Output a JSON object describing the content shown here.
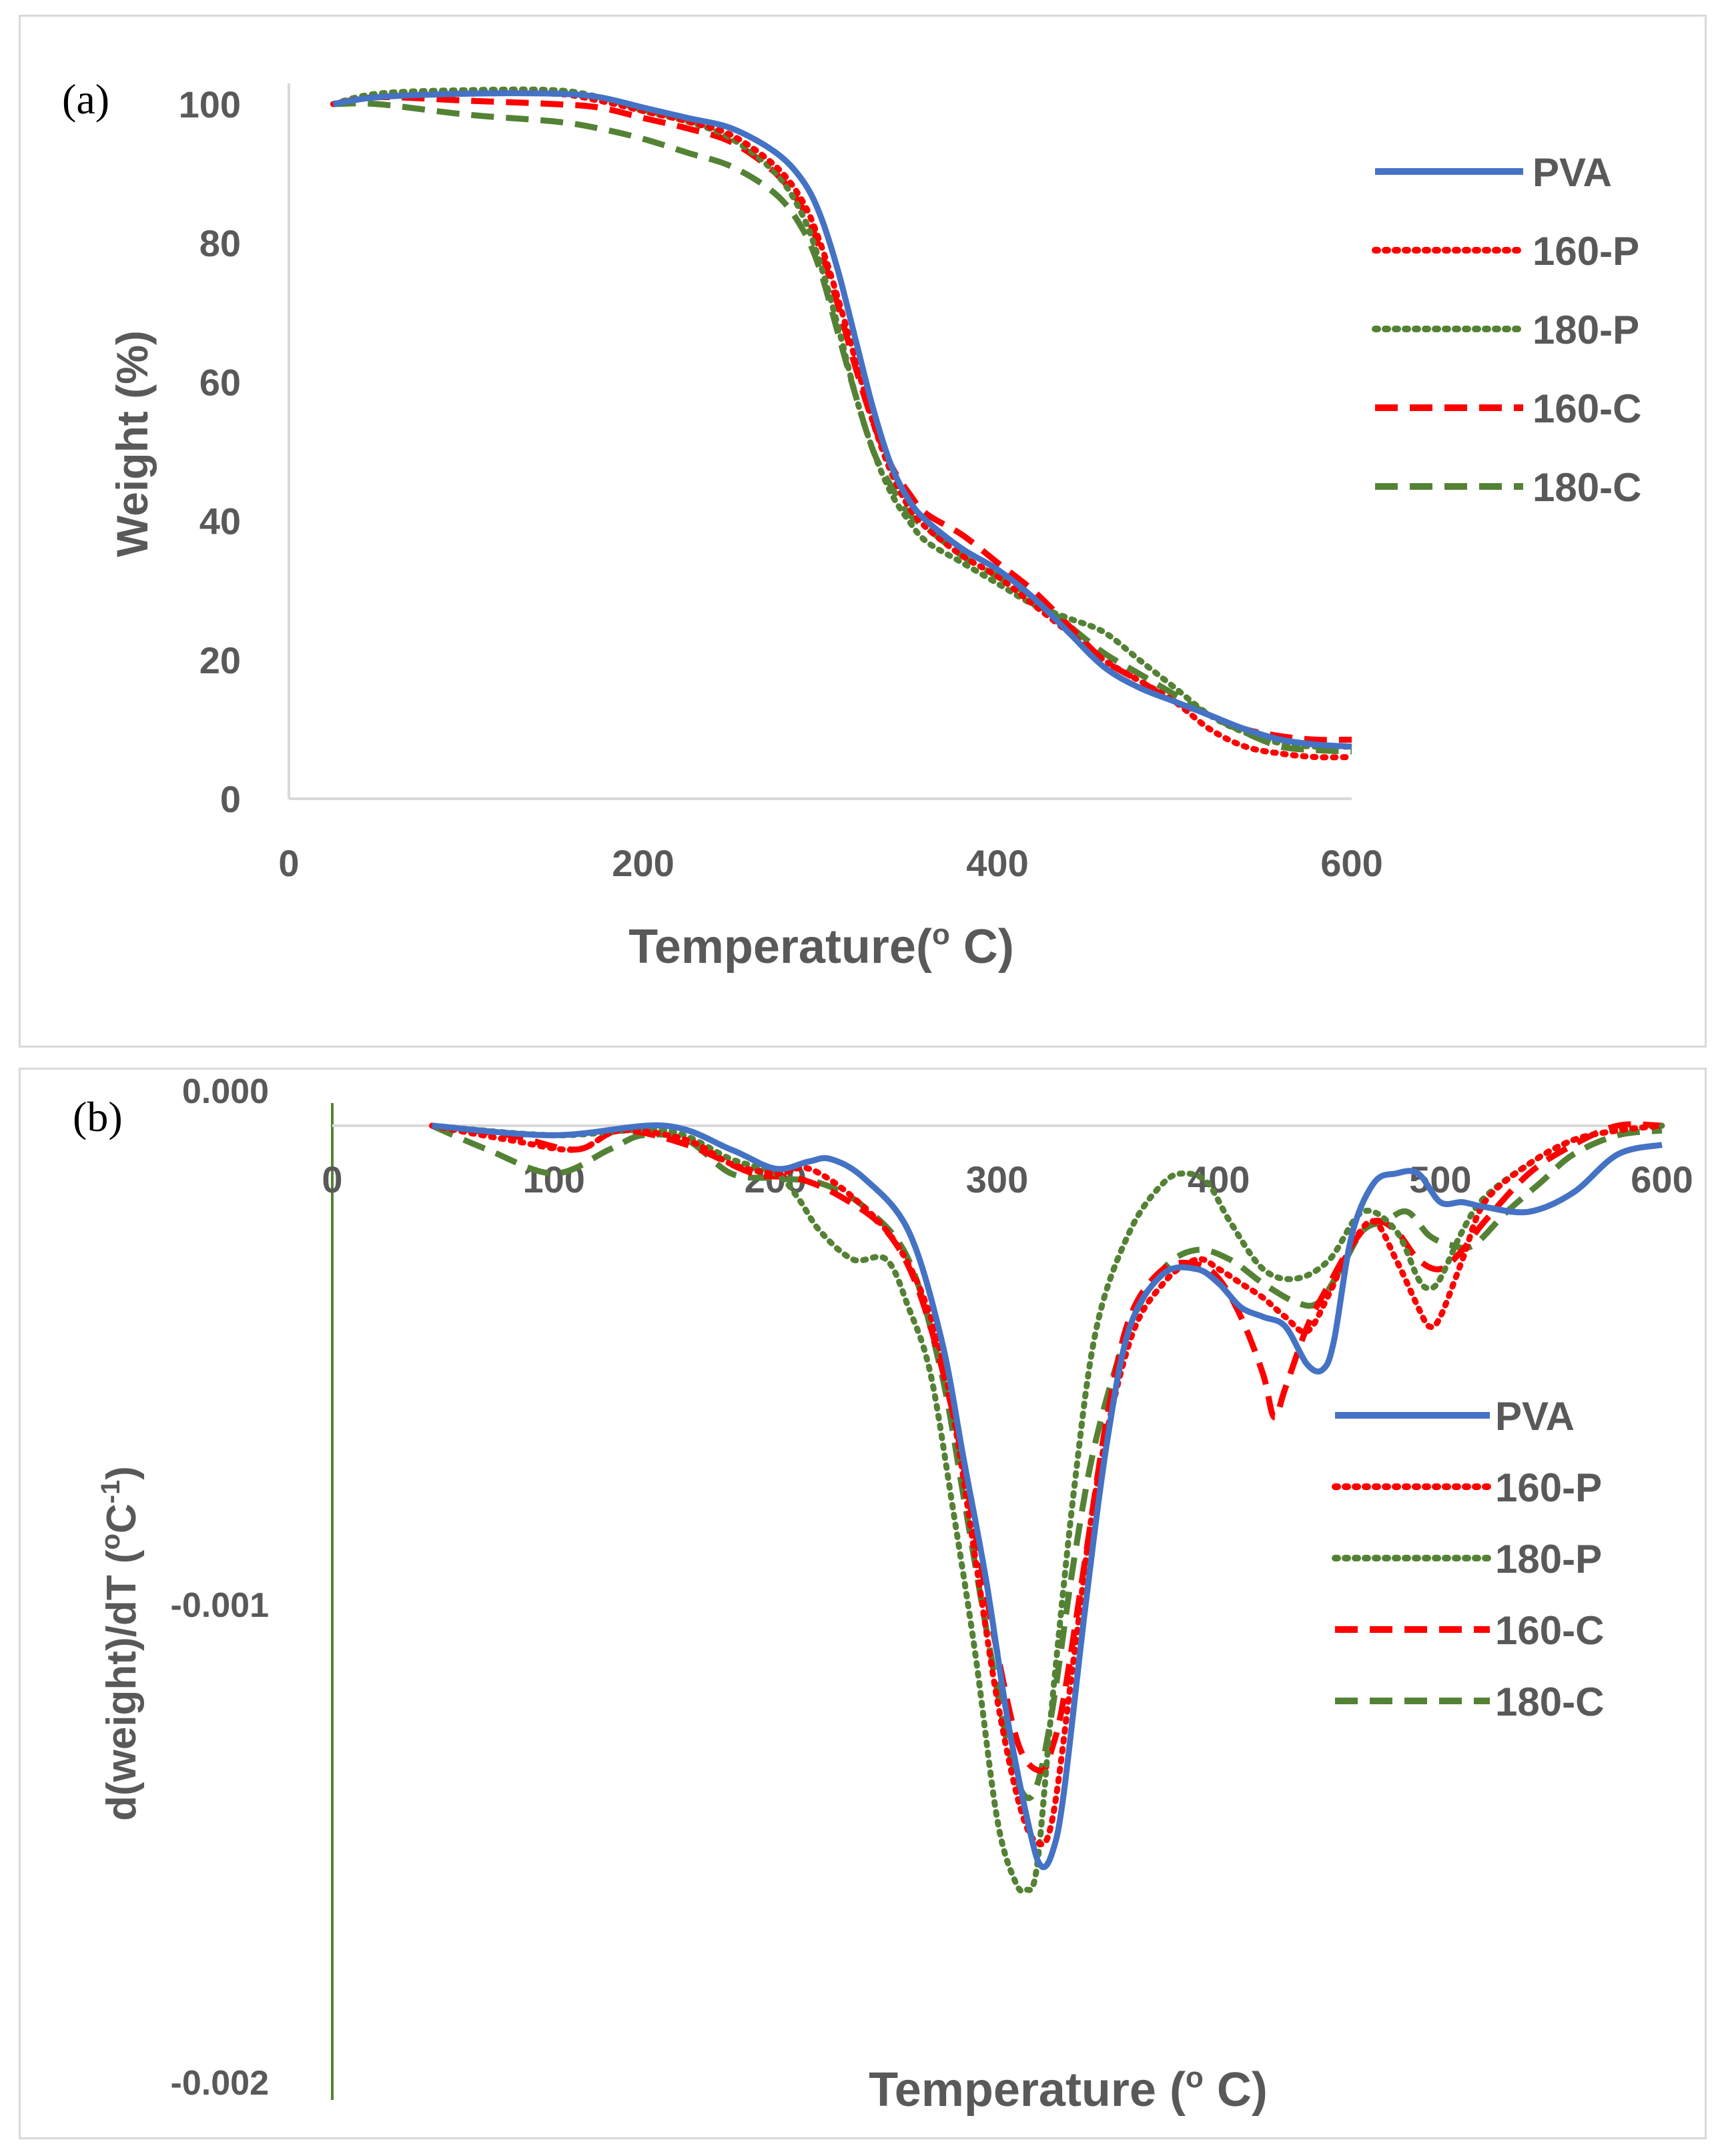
{
  "figure": {
    "series_names": [
      "PVA",
      "160-P",
      "180-P",
      "160-C",
      "180-C"
    ],
    "series_colors": [
      "#4472c4",
      "#ff0000",
      "#548235",
      "#ff0000",
      "#548235"
    ],
    "series_styles": [
      "solid",
      "dotted",
      "dotted",
      "dashed",
      "dashed"
    ]
  },
  "panel_a": {
    "label": "(a)",
    "xlabel": "Temperature(",
    "xlabel_sup": "o",
    "xlabel_unit": " C)",
    "ylabel": "Weight (%)",
    "xticks": [
      "0",
      "200",
      "400",
      "600"
    ],
    "yticks": [
      "0",
      "20",
      "40",
      "60",
      "80",
      "100"
    ],
    "legend": [
      "PVA",
      "160-P",
      "180-P",
      "160-C",
      "180-C"
    ]
  },
  "panel_b": {
    "label": "(b)",
    "xlabel": "Temperature (",
    "xlabel_sup": "o",
    "xlabel_unit": " C)",
    "ylabel_main": "d(weight)/dT (",
    "ylabel_sup1": "o",
    "ylabel_mid": "C",
    "ylabel_sup2": "-1",
    "ylabel_end": ")",
    "xticks": [
      "0",
      "100",
      "200",
      "300",
      "400",
      "500",
      "600"
    ],
    "yticks": [
      "0.000",
      "-0.001",
      "-0.002"
    ],
    "legend": [
      "PVA",
      "160-P",
      "180-P",
      "160-C",
      "180-C"
    ]
  },
  "chart_data": [
    {
      "type": "line",
      "title": "(a)",
      "xlabel": "Temperature(o C)",
      "ylabel": "Weight (%)",
      "xlim": [
        0,
        600
      ],
      "ylim": [
        0,
        100
      ],
      "series": [
        {
          "name": "PVA",
          "x": [
            25,
            50,
            100,
            150,
            175,
            200,
            225,
            250,
            275,
            290,
            300,
            310,
            320,
            330,
            340,
            350,
            360,
            380,
            400,
            420,
            440,
            460,
            480,
            500,
            520,
            540,
            560,
            580,
            600
          ],
          "y": [
            100,
            101,
            101.5,
            101.5,
            101,
            99.5,
            98,
            96.5,
            93,
            89,
            84,
            76,
            66,
            56,
            48,
            43,
            40,
            36,
            33,
            29,
            24,
            19,
            16,
            14,
            12,
            10,
            8.5,
            7.8,
            7.5
          ]
        },
        {
          "name": "160-P",
          "x": [
            25,
            50,
            100,
            150,
            175,
            200,
            225,
            250,
            275,
            290,
            300,
            310,
            320,
            330,
            340,
            350,
            360,
            380,
            400,
            420,
            440,
            460,
            480,
            500,
            520,
            540,
            560,
            580,
            600
          ],
          "y": [
            100,
            101,
            101.5,
            101.5,
            100.5,
            99,
            97.5,
            95.5,
            91,
            86,
            80,
            72,
            63,
            54,
            47,
            42,
            39,
            35,
            32,
            28,
            24,
            20,
            17,
            14,
            10,
            7.5,
            6.5,
            6,
            6
          ]
        },
        {
          "name": "180-P",
          "x": [
            25,
            50,
            100,
            150,
            175,
            200,
            225,
            250,
            275,
            290,
            300,
            310,
            320,
            330,
            340,
            350,
            360,
            380,
            400,
            420,
            440,
            460,
            480,
            500,
            520,
            540,
            560,
            580,
            600
          ],
          "y": [
            100,
            101.5,
            102,
            102,
            101,
            99,
            97.5,
            95,
            90,
            84,
            77,
            68,
            58,
            50,
            44,
            40,
            37,
            34,
            31,
            28,
            26,
            24,
            20,
            16,
            12,
            9.5,
            8,
            7.5,
            7.5
          ]
        },
        {
          "name": "160-C",
          "x": [
            25,
            50,
            100,
            150,
            175,
            200,
            225,
            250,
            275,
            290,
            300,
            310,
            320,
            330,
            340,
            350,
            360,
            380,
            400,
            420,
            440,
            460,
            480,
            500,
            520,
            540,
            560,
            580,
            600
          ],
          "y": [
            100,
            101,
            100.5,
            100,
            99.5,
            98,
            96.5,
            94.5,
            90,
            85,
            79,
            71,
            62,
            54,
            48,
            44,
            41,
            38,
            34,
            30,
            25,
            20,
            17,
            14,
            12,
            10,
            9,
            8.5,
            8.5
          ]
        },
        {
          "name": "180-C",
          "x": [
            25,
            50,
            100,
            150,
            175,
            200,
            225,
            250,
            275,
            290,
            300,
            310,
            320,
            330,
            340,
            350,
            360,
            380,
            400,
            420,
            440,
            460,
            480,
            500,
            520,
            540,
            560,
            580,
            600
          ],
          "y": [
            100,
            100,
            98.5,
            97.5,
            96.5,
            95,
            93,
            91,
            87,
            82,
            76,
            67,
            58,
            50,
            45,
            41,
            39,
            35,
            32,
            29,
            25,
            21,
            18,
            15,
            12,
            9.5,
            7.5,
            7,
            6.8
          ]
        }
      ]
    },
    {
      "type": "line",
      "title": "(b)",
      "xlabel": "Temperature (o C)",
      "ylabel": "d(weight)/dT (oC-1)",
      "xlim": [
        0,
        600
      ],
      "ylim": [
        -0.002,
        0
      ],
      "series": [
        {
          "name": "PVA",
          "x": [
            45,
            100,
            150,
            180,
            200,
            215,
            225,
            240,
            260,
            275,
            285,
            295,
            305,
            315,
            320,
            325,
            330,
            340,
            350,
            360,
            375,
            390,
            400,
            410,
            420,
            430,
            440,
            447,
            452,
            460,
            470,
            480,
            490,
            500,
            510,
            520,
            540,
            560,
            580,
            600
          ],
          "y": [
            0,
            -2e-05,
            0,
            -5e-05,
            -9e-05,
            -7.5e-05,
            -7e-05,
            -0.00011,
            -0.00022,
            -0.00045,
            -0.0007,
            -0.00095,
            -0.00125,
            -0.00148,
            -0.00155,
            -0.00152,
            -0.0014,
            -0.001,
            -0.00065,
            -0.00042,
            -0.00031,
            -0.0003,
            -0.00033,
            -0.00038,
            -0.0004,
            -0.00042,
            -0.0005,
            -0.00051,
            -0.00045,
            -0.00023,
            -0.00012,
            -0.0001,
            -0.0001,
            -0.00016,
            -0.00016,
            -0.00017,
            -0.00018,
            -0.00014,
            -6e-05,
            -4e-05
          ]
        },
        {
          "name": "160-P",
          "x": [
            45,
            80,
            110,
            130,
            160,
            180,
            200,
            215,
            235,
            255,
            270,
            280,
            290,
            300,
            310,
            318,
            325,
            335,
            345,
            360,
            375,
            390,
            400,
            410,
            420,
            430,
            440,
            450,
            460,
            470,
            480,
            490,
            495,
            500,
            510,
            520,
            540,
            560,
            580,
            600
          ],
          "y": [
            0,
            -3e-05,
            -5e-05,
            -1e-05,
            -3e-05,
            -8e-05,
            -0.0001,
            -9e-05,
            -0.00015,
            -0.00025,
            -0.0004,
            -0.0006,
            -0.0009,
            -0.0012,
            -0.00142,
            -0.0015,
            -0.00145,
            -0.0011,
            -0.00075,
            -0.00045,
            -0.00033,
            -0.00028,
            -0.0003,
            -0.00033,
            -0.00036,
            -0.0004,
            -0.00043,
            -0.00035,
            -0.00025,
            -0.0002,
            -0.00028,
            -0.00038,
            -0.00042,
            -0.0004,
            -0.00028,
            -0.00016,
            -8e-05,
            -3e-05,
            -1e-05,
            0
          ]
        },
        {
          "name": "180-P",
          "x": [
            45,
            100,
            150,
            180,
            200,
            210,
            220,
            235,
            250,
            260,
            270,
            280,
            290,
            300,
            308,
            313,
            318,
            325,
            335,
            345,
            360,
            375,
            385,
            395,
            405,
            420,
            435,
            450,
            465,
            480,
            490,
            495,
            500,
            510,
            520,
            540,
            560,
            580,
            600
          ],
          "y": [
            0,
            -2e-05,
            -1e-05,
            -7e-05,
            -0.0001,
            -0.00015,
            -0.00022,
            -0.00028,
            -0.00028,
            -0.00038,
            -0.00052,
            -0.0008,
            -0.0011,
            -0.00145,
            -0.00158,
            -0.0016,
            -0.00155,
            -0.0012,
            -0.00075,
            -0.00042,
            -0.00022,
            -0.00012,
            -0.0001,
            -0.00012,
            -0.0002,
            -0.0003,
            -0.00032,
            -0.00028,
            -0.00018,
            -0.00022,
            -0.00032,
            -0.00034,
            -0.00032,
            -0.00022,
            -0.00015,
            -8e-05,
            -3e-05,
            -1e-05,
            0
          ]
        },
        {
          "name": "160-C",
          "x": [
            45,
            80,
            110,
            130,
            160,
            190,
            210,
            230,
            250,
            265,
            280,
            290,
            300,
            310,
            320,
            325,
            330,
            340,
            350,
            360,
            375,
            390,
            400,
            410,
            420,
            425,
            430,
            440,
            450,
            460,
            470,
            480,
            490,
            500,
            510,
            520,
            540,
            560,
            580,
            600
          ],
          "y": [
            0,
            -2e-05,
            -5e-05,
            -1e-05,
            -4e-05,
            -0.0001,
            -0.00011,
            -0.00015,
            -0.00022,
            -0.00035,
            -0.0006,
            -0.00085,
            -0.0011,
            -0.0013,
            -0.00135,
            -0.0013,
            -0.0012,
            -0.0009,
            -0.0006,
            -0.0004,
            -0.0003,
            -0.00029,
            -0.00032,
            -0.0004,
            -0.00052,
            -0.00061,
            -0.00055,
            -0.00042,
            -0.00033,
            -0.00025,
            -0.0002,
            -0.00022,
            -0.00028,
            -0.0003,
            -0.00026,
            -0.0002,
            -0.0001,
            -4e-05,
            0,
            0
          ]
        },
        {
          "name": "180-C",
          "x": [
            45,
            70,
            100,
            125,
            140,
            160,
            180,
            200,
            220,
            240,
            260,
            275,
            285,
            295,
            305,
            312,
            318,
            325,
            335,
            345,
            360,
            375,
            390,
            405,
            420,
            435,
            445,
            455,
            465,
            475,
            485,
            495,
            505,
            515,
            530,
            545,
            560,
            580,
            600
          ],
          "y": [
            0,
            -5e-05,
            -0.0001,
            -5e-05,
            -2e-05,
            -3e-05,
            -0.0001,
            -0.00011,
            -0.00012,
            -0.00017,
            -0.00028,
            -0.00052,
            -0.00078,
            -0.00105,
            -0.0013,
            -0.0014,
            -0.00138,
            -0.00122,
            -0.0009,
            -0.00065,
            -0.00042,
            -0.0003,
            -0.00026,
            -0.00028,
            -0.00033,
            -0.00037,
            -0.00037,
            -0.0003,
            -0.00022,
            -0.0002,
            -0.00018,
            -0.00023,
            -0.00025,
            -0.00025,
            -0.00018,
            -0.00012,
            -6e-05,
            -2e-05,
            -1e-05
          ]
        }
      ]
    }
  ]
}
